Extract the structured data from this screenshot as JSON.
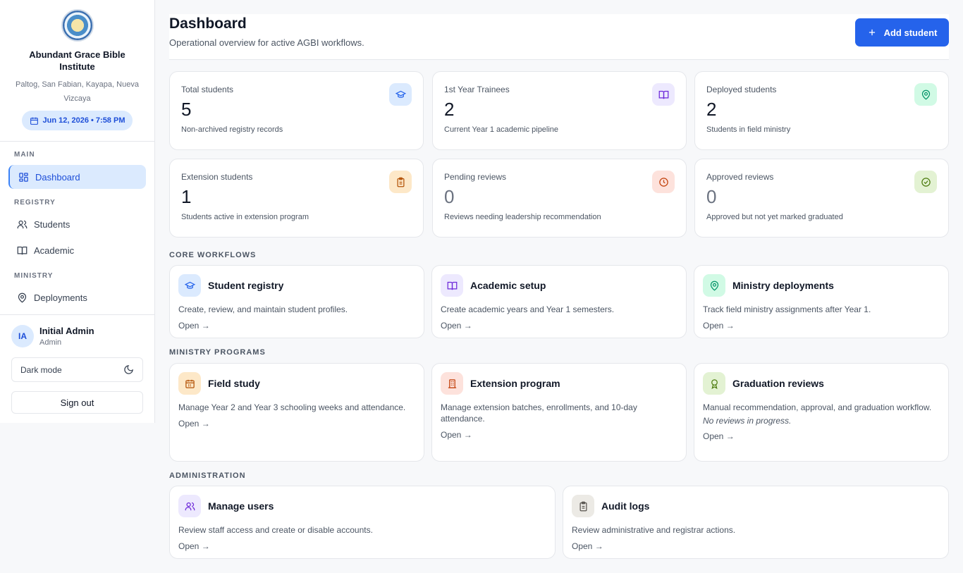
{
  "sidebar": {
    "brand_name": "Abundant Grace Bible Institute",
    "brand_location": "Paltog, San Fabian, Kayapa, Nueva Vizcaya",
    "datetime": "Jun 12, 2026 • 7:58 PM",
    "sections": {
      "main": "MAIN",
      "registry": "REGISTRY",
      "ministry": "MINISTRY"
    },
    "items": {
      "dashboard": "Dashboard",
      "students": "Students",
      "academic": "Academic",
      "deployments": "Deployments"
    },
    "user": {
      "initials": "IA",
      "name": "Initial Admin",
      "role": "Admin"
    },
    "dark_mode_label": "Dark mode",
    "sign_out_label": "Sign out"
  },
  "header": {
    "title": "Dashboard",
    "subtitle": "Operational overview for active AGBI workflows.",
    "add_student_label": "Add student"
  },
  "stats": [
    {
      "label": "Total students",
      "value": "5",
      "desc": "Non-archived registry records",
      "icon": "graduation-cap-icon"
    },
    {
      "label": "1st Year Trainees",
      "value": "2",
      "desc": "Current Year 1 academic pipeline",
      "icon": "book-icon"
    },
    {
      "label": "Deployed students",
      "value": "2",
      "desc": "Students in field ministry",
      "icon": "map-pin-icon"
    },
    {
      "label": "Extension students",
      "value": "1",
      "desc": "Students active in extension program",
      "icon": "clipboard-icon"
    },
    {
      "label": "Pending reviews",
      "value": "0",
      "desc": "Reviews needing leadership recommendation",
      "icon": "clock-icon"
    },
    {
      "label": "Approved reviews",
      "value": "0",
      "desc": "Approved but not yet marked graduated",
      "icon": "check-circle-icon"
    }
  ],
  "sections": {
    "core": "CORE WORKFLOWS",
    "ministry": "MINISTRY PROGRAMS",
    "admin": "ADMINISTRATION"
  },
  "cards": {
    "student_registry": {
      "title": "Student registry",
      "desc": "Create, review, and maintain student profiles.",
      "link": "Open →"
    },
    "academic_setup": {
      "title": "Academic setup",
      "desc": "Create academic years and Year 1 semesters.",
      "link": "Open →"
    },
    "ministry_deployments": {
      "title": "Ministry deployments",
      "desc": "Track field ministry assignments after Year 1.",
      "link": "Open →"
    },
    "field_study": {
      "title": "Field study",
      "desc": "Manage Year 2 and Year 3 schooling weeks and attendance.",
      "link": "Open →"
    },
    "extension_program": {
      "title": "Extension program",
      "desc": "Manage extension batches, enrollments, and 10-day attendance.",
      "link": "Open →"
    },
    "graduation_reviews": {
      "title": "Graduation reviews",
      "desc": "Manual recommendation, approval, and graduation workflow.",
      "note": "No reviews in progress.",
      "link": "Open →"
    },
    "manage_users": {
      "title": "Manage users",
      "desc": "Review staff access and create or disable accounts.",
      "link": "Open →"
    },
    "audit_logs": {
      "title": "Audit logs",
      "desc": "Review administrative and registrar actions.",
      "link": "Open →"
    }
  }
}
